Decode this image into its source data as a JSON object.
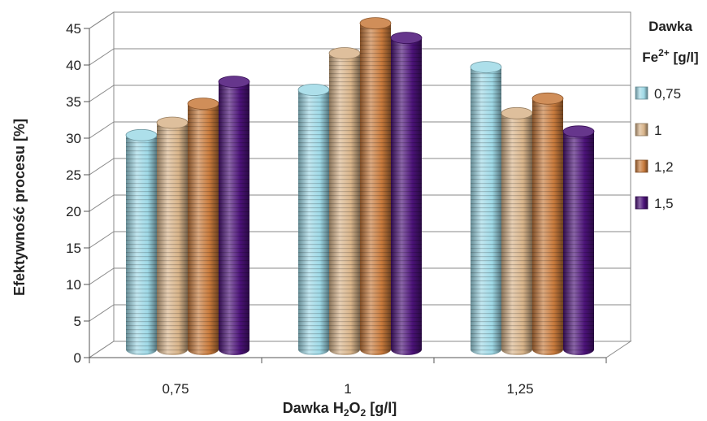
{
  "chart_data": {
    "type": "bar",
    "style": "3d-cylinder",
    "categories": [
      "0,75",
      "1",
      "1,25"
    ],
    "series": [
      {
        "name": "0,75",
        "values": [
          29.3,
          35.5,
          38.6
        ],
        "color": "#9fd9e6"
      },
      {
        "name": "1",
        "values": [
          31.0,
          40.5,
          32.3
        ],
        "color": "#d8b48a"
      },
      {
        "name": "1,2",
        "values": [
          33.6,
          44.6,
          34.3
        ],
        "color": "#c87a3c"
      },
      {
        "name": "1,5",
        "values": [
          36.6,
          42.6,
          29.8
        ],
        "color": "#4b1278"
      }
    ],
    "ylim": [
      0,
      45
    ],
    "yticks": [
      "0",
      "5",
      "10",
      "15",
      "20",
      "25",
      "30",
      "35",
      "40",
      "45"
    ],
    "ylabel": "Efektywność procesu [%]",
    "xlabel": {
      "prefix": "Dawka H",
      "sub1": "2",
      "mid": "O",
      "sub2": "2",
      "suffix": " [g/l]"
    },
    "legend": {
      "placement": "right",
      "title_line1": "Dawka",
      "title_line2": {
        "prefix": "Fe",
        "sup": "2+",
        "suffix": " [g/l]"
      }
    },
    "grid": true
  }
}
